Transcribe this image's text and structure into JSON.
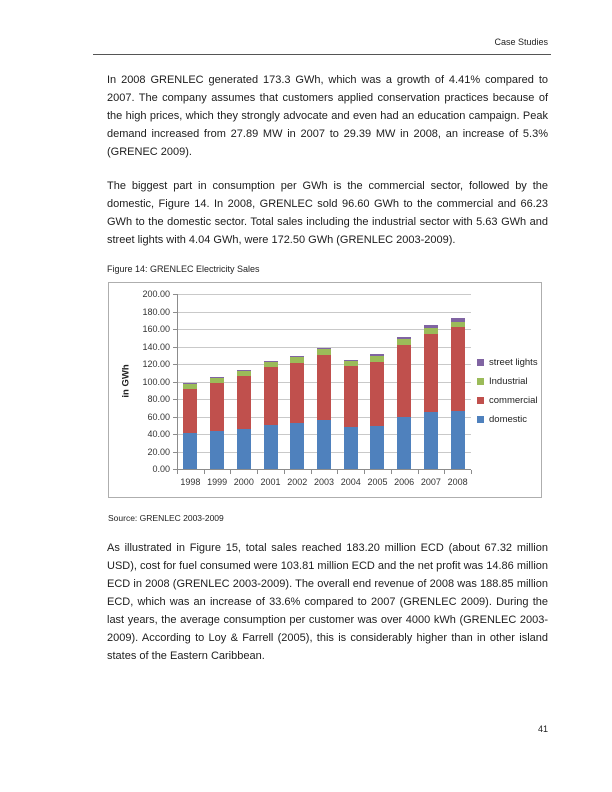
{
  "page": {
    "header_title": "Case Studies",
    "page_number": "41"
  },
  "paragraphs": {
    "p1": "In 2008 GRENLEC generated 173.3 GWh, which was a growth of 4.41% compared to 2007. The company assumes that customers applied conservation practices because of the high prices, which they strongly advocate and even had an education campaign. Peak demand increased from 27.89 MW in 2007 to 29.39 MW in 2008, an increase of 5.3% (GRENEC 2009).",
    "p2": "The biggest part in consumption per GWh is the commercial sector, followed by the domestic, Figure 14. In 2008, GRENLEC sold 96.60 GWh to the commercial and 66.23 GWh to the domestic sector. Total sales including the industrial sector with 5.63 GWh and street lights with 4.04 GWh, were 172.50 GWh (GRENLEC 2003-2009).",
    "p3": "As illustrated in Figure 15, total sales reached 183.20 million ECD (about 67.32 million USD), cost for fuel consumed were 103.81 million ECD and the net profit was 14.86 million ECD in 2008 (GRENLEC 2003-2009). The overall end revenue of 2008 was 188.85 million ECD, which was an increase of 33.6% compared to 2007 (GRENLEC 2009). During the last years, the average consumption per customer was over 4000 kWh (GRENLEC 2003-2009). According to Loy & Farrell (2005), this is considerably higher than in other island states of the Eastern Caribbean."
  },
  "figure": {
    "caption": "Figure 14: GRENLEC Electricity Sales",
    "source": "Source: GRENLEC 2003-2009"
  },
  "chart_data": {
    "type": "bar",
    "stacked": true,
    "title": "",
    "xlabel": "",
    "ylabel": "in GWh",
    "ylim": [
      0,
      200
    ],
    "ytick_step": 20,
    "ytick_format_decimals": 2,
    "grid": true,
    "legend_position": "right",
    "legend_order_top_to_bottom": [
      "street lights",
      "Industrial",
      "commercial",
      "domestic"
    ],
    "categories": [
      "1998",
      "1999",
      "2000",
      "2001",
      "2002",
      "2003",
      "2004",
      "2005",
      "2006",
      "2007",
      "2008"
    ],
    "series": [
      {
        "name": "domestic",
        "color": "#4F81BD",
        "values": [
          41.0,
          44.0,
          46.0,
          50.0,
          52.5,
          56.0,
          48.0,
          49.5,
          60.0,
          65.0,
          66.23
        ]
      },
      {
        "name": "commercial",
        "color": "#C0504D",
        "values": [
          51.0,
          54.0,
          60.5,
          66.5,
          69.0,
          74.5,
          70.0,
          73.0,
          81.5,
          89.5,
          96.6
        ]
      },
      {
        "name": "Industrial",
        "color": "#9BBB59",
        "values": [
          5.0,
          5.5,
          5.5,
          6.0,
          6.5,
          6.5,
          5.5,
          6.5,
          7.0,
          7.0,
          5.63
        ]
      },
      {
        "name": "street lights",
        "color": "#8064A2",
        "values": [
          1.5,
          1.5,
          1.5,
          1.5,
          1.5,
          1.5,
          1.5,
          2.0,
          2.0,
          3.5,
          4.04
        ]
      }
    ]
  }
}
